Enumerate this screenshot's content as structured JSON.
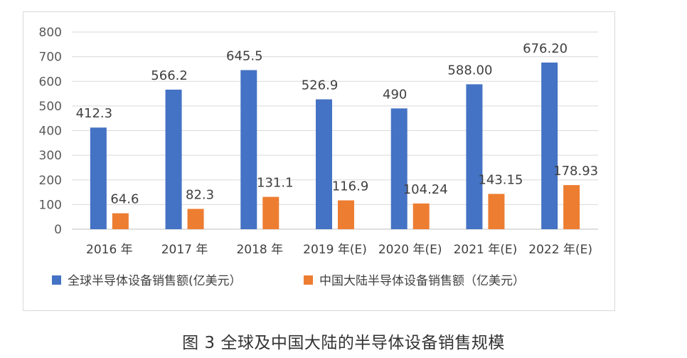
{
  "chart_data": {
    "type": "bar",
    "categories": [
      "2016 年",
      "2017 年",
      "2018 年",
      "2019 年(E)",
      "2020 年(E)",
      "2021 年(E)",
      "2022 年(E)"
    ],
    "series": [
      {
        "name": "全球半导体设备销售额(亿美元）",
        "color": "#4472c4",
        "values": [
          412.3,
          566.2,
          645.5,
          526.9,
          490,
          588.0,
          676.2
        ],
        "labels": [
          "412.3",
          "566.2",
          "645.5",
          "526.9",
          "490",
          "588.00",
          "676.20"
        ]
      },
      {
        "name": "中国大陆半导体设备销售额（亿美元）",
        "color": "#ed7d31",
        "values": [
          64.6,
          82.3,
          131.1,
          116.9,
          104.24,
          143.15,
          178.93
        ],
        "labels": [
          "64.6",
          "82.3",
          "131.1",
          "116.9",
          "104.24",
          "143.15",
          "178.93"
        ]
      }
    ],
    "ylim": [
      0,
      800
    ],
    "yticks": [
      "0",
      "100",
      "200",
      "300",
      "400",
      "500",
      "600",
      "700",
      "800"
    ],
    "grid": true,
    "legend": "bottom"
  },
  "caption": "图 3  全球及中国大陆的半导体设备销售规模"
}
